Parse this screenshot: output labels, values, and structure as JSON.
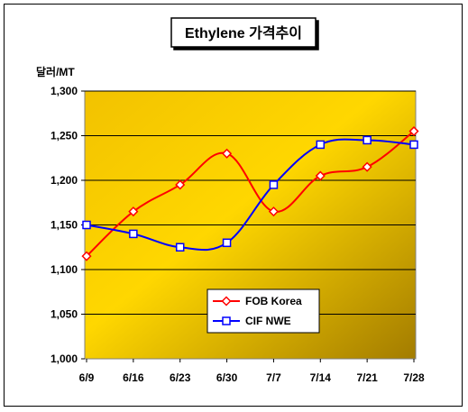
{
  "chart_data": {
    "type": "line",
    "title": "Ethylene 가격추이",
    "ylabel": "달러/MT",
    "xlabel": "",
    "categories": [
      "6/9",
      "6/16",
      "6/23",
      "6/30",
      "7/7",
      "7/14",
      "7/21",
      "7/28"
    ],
    "ylim": [
      1000,
      1300
    ],
    "yticks": [
      1000,
      1050,
      1100,
      1150,
      1200,
      1250,
      1300
    ],
    "ytick_labels": [
      "1,000",
      "1,050",
      "1,100",
      "1,150",
      "1,200",
      "1,250",
      "1,300"
    ],
    "grid": true,
    "legend_position": "bottom-center",
    "background": "gold gradient",
    "series": [
      {
        "name": "FOB Korea",
        "color": "#ff0000",
        "marker": "diamond",
        "values": [
          1115,
          1165,
          1195,
          1230,
          1165,
          1205,
          1215,
          1255
        ]
      },
      {
        "name": "CIF NWE",
        "color": "#0000ff",
        "marker": "square",
        "values": [
          1150,
          1140,
          1125,
          1130,
          1195,
          1240,
          1245,
          1240
        ]
      }
    ]
  }
}
